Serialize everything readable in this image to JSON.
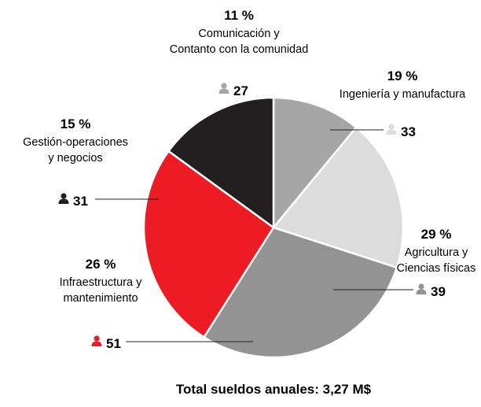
{
  "chart_data": {
    "type": "pie",
    "slices": [
      {
        "label": [
          "Comunicación y",
          "Contanto con la comunidad"
        ],
        "percent": "11 %",
        "value": 11,
        "count": "27",
        "color": "#a7a6a6"
      },
      {
        "label": [
          "Ingeniería y manufactura"
        ],
        "percent": "19 %",
        "value": 19,
        "count": "33",
        "color": "#dcdcdc"
      },
      {
        "label": [
          "Agricultura y",
          "Ciencias físicas"
        ],
        "percent": "29 %",
        "value": 29,
        "count": "39",
        "color": "#949393"
      },
      {
        "label": [
          "Infraestructura y",
          "mantenimiento"
        ],
        "percent": "26 %",
        "value": 26,
        "count": "51",
        "color": "#ed1c24"
      },
      {
        "label": [
          "Gestión-operaciones",
          "y negocios"
        ],
        "percent": "15 %",
        "value": 15,
        "count": "31",
        "color": "#231f20"
      }
    ],
    "start": "12 o'clock",
    "direction": "clockwise",
    "total_label": "Total sueldos anuales: 3,27 M$",
    "legend": "none"
  }
}
